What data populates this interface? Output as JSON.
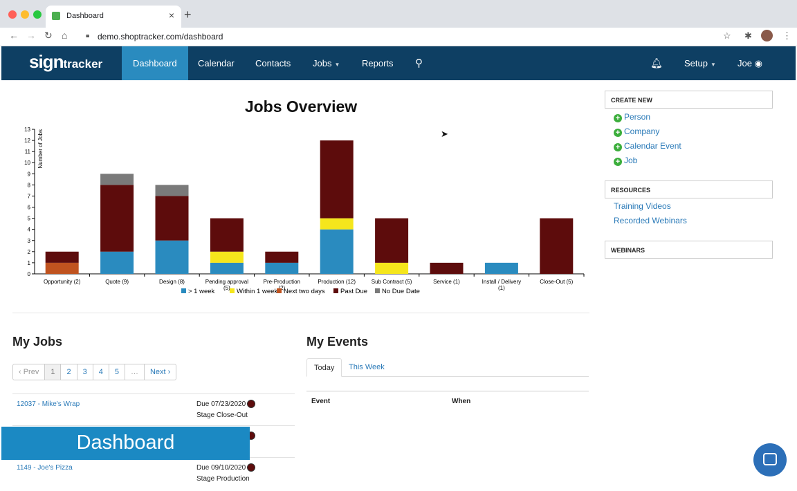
{
  "browser": {
    "tab_title": "Dashboard",
    "url": "demo.shoptracker.com/dashboard"
  },
  "nav": {
    "logo": "sign",
    "logo_suffix": "tracker",
    "items": [
      "Dashboard",
      "Calendar",
      "Contacts",
      "Jobs",
      "Reports"
    ],
    "setup": "Setup",
    "user": "Joe"
  },
  "chart_data": {
    "type": "bar",
    "title": "Jobs Overview",
    "ylabel": "Number of Jobs",
    "ylim": [
      0,
      13
    ],
    "yticks": [
      0,
      1,
      2,
      3,
      4,
      5,
      6,
      7,
      8,
      9,
      10,
      11,
      12,
      13
    ],
    "categories": [
      "Opportunity (2)",
      "Quote (9)",
      "Design (8)",
      "Pending approval (5)",
      "Pre-Production (2)",
      "Production (12)",
      "Sub Contract (5)",
      "Service (1)",
      "Install / Delivery (1)",
      "Close-Out (5)"
    ],
    "series": [
      {
        "name": "> 1 week",
        "color": "#2a8bbf",
        "values": [
          0,
          2,
          3,
          1,
          1,
          4,
          0,
          0,
          1,
          0
        ]
      },
      {
        "name": "Within 1 week",
        "color": "#f5e61c",
        "values": [
          0,
          0,
          0,
          1,
          0,
          1,
          1,
          0,
          0,
          0
        ]
      },
      {
        "name": "Next two days",
        "color": "#c0531f",
        "values": [
          1,
          0,
          0,
          0,
          0,
          0,
          0,
          0,
          0,
          0
        ]
      },
      {
        "name": "Past Due",
        "color": "#5d0c0c",
        "values": [
          1,
          6,
          4,
          3,
          1,
          7,
          4,
          1,
          0,
          5
        ]
      },
      {
        "name": "No Due Date",
        "color": "#7a7a7a",
        "values": [
          0,
          1,
          1,
          0,
          0,
          0,
          0,
          0,
          0,
          0
        ]
      }
    ],
    "stacked": true,
    "legend_position": "bottom",
    "grid": false
  },
  "my_jobs": {
    "title": "My Jobs",
    "pager": [
      "‹ Prev",
      "1",
      "2",
      "3",
      "4",
      "5",
      "…",
      "Next ›"
    ],
    "rows": [
      {
        "link": "12037 - Mike's Wrap",
        "due": "Due 07/23/2020",
        "stage": "Stage Close-Out"
      },
      {
        "link": "",
        "due": "",
        "stage": ""
      },
      {
        "link": "1149 - Joe's Pizza",
        "due": "Due 09/10/2020",
        "stage": "Stage Production"
      }
    ]
  },
  "overlay_label": "Dashboard",
  "my_events": {
    "title": "My Events",
    "tabs": [
      "Today",
      "This Week"
    ],
    "columns": [
      "Event",
      "When"
    ]
  },
  "create_new": {
    "header": "CREATE NEW",
    "items": [
      "Person",
      "Company",
      "Calendar Event",
      "Job"
    ]
  },
  "resources": {
    "header": "RESOURCES",
    "items": [
      "Training Videos",
      "Recorded Webinars"
    ]
  },
  "webinars": {
    "header": "WEBINARS"
  }
}
